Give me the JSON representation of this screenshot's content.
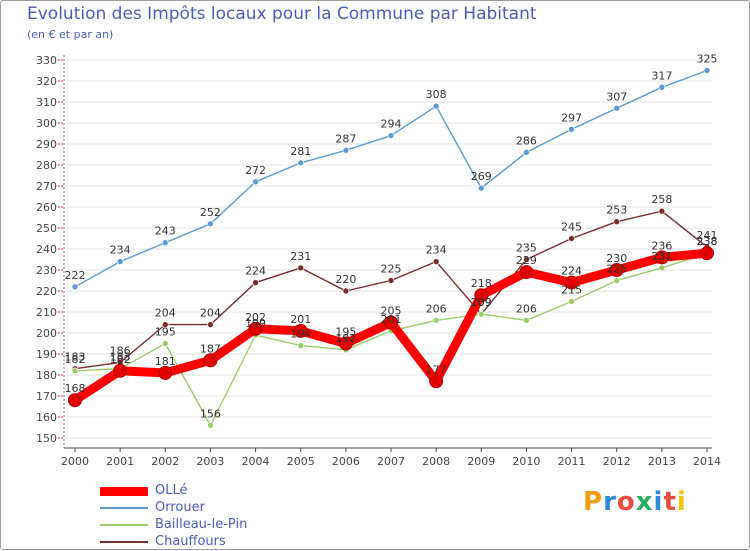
{
  "title": "Evolution des Impôts locaux pour la Commune par Habitant",
  "subtitle": "(en € et par an)",
  "brand": {
    "text": "Proxiti",
    "letter_colors": [
      "#f39c12",
      "#2e86de",
      "#e74c3c",
      "#27ae60",
      "#2e86de",
      "#e74c3c",
      "#f1c40f"
    ]
  },
  "chart_data": {
    "type": "line",
    "title": "Evolution des Impôts locaux pour la Commune par Habitant",
    "ylabel": "(en € et par an)",
    "xlabel": "",
    "x": [
      "2000",
      "2001",
      "2002",
      "2003",
      "2004",
      "2005",
      "2006",
      "2007",
      "2008",
      "2009",
      "2010",
      "2011",
      "2012",
      "2013",
      "2014"
    ],
    "ylim": [
      150,
      330
    ],
    "yticks": [
      150,
      160,
      170,
      180,
      190,
      200,
      210,
      220,
      230,
      240,
      250,
      260,
      270,
      280,
      290,
      300,
      310,
      320,
      330
    ],
    "grid": "horizontal",
    "legend_position": "bottom-left",
    "series": [
      {
        "name": "Orrouer",
        "color": "#5b9bd5",
        "values": [
          222,
          234,
          243,
          252,
          272,
          281,
          287,
          294,
          308,
          269,
          286,
          297,
          307,
          317,
          325
        ],
        "labels": [
          "222",
          "234",
          "243",
          "252",
          "272",
          "281",
          "287",
          "294",
          "308",
          "269",
          "286",
          "297",
          "307",
          "317",
          "325"
        ]
      },
      {
        "name": "Chauffours",
        "color": "#7b2c2c",
        "values": [
          183,
          186,
          204,
          204,
          224,
          231,
          220,
          225,
          234,
          209,
          235,
          245,
          253,
          258,
          241
        ],
        "labels": [
          "183",
          "186",
          "204",
          "204",
          "224",
          "231",
          "220",
          "225",
          "234",
          "209",
          "235",
          "245",
          "253",
          "258",
          "241"
        ]
      },
      {
        "name": "Bailleau-le-Pin",
        "color": "#9acd6a",
        "values": [
          182,
          183,
          195,
          156,
          199,
          194,
          192,
          201,
          206,
          209,
          206,
          215,
          225,
          231,
          238
        ],
        "labels": [
          "182",
          "183",
          "195",
          "156",
          "199",
          "194",
          "192",
          "201",
          "206",
          "209",
          "206",
          "215",
          "225",
          "231",
          "238"
        ]
      },
      {
        "name": "OLLé",
        "color": "#ff0000",
        "values": [
          168,
          182,
          181,
          187,
          202,
          201,
          195,
          205,
          177,
          218,
          229,
          224,
          230,
          236,
          238
        ],
        "labels": [
          "168",
          "182",
          "181",
          "187",
          "202",
          "201",
          "195",
          "205",
          "177",
          "218",
          "229",
          "224",
          "230",
          "236",
          "238"
        ]
      }
    ]
  },
  "legend": [
    {
      "label": "OLLé",
      "color": "#ff0000",
      "width": 9
    },
    {
      "label": "Orrouer",
      "color": "#5b9bd5",
      "width": 2
    },
    {
      "label": "Bailleau-le-Pin",
      "color": "#9acd6a",
      "width": 2
    },
    {
      "label": "Chauffours",
      "color": "#7b2c2c",
      "width": 2
    }
  ]
}
